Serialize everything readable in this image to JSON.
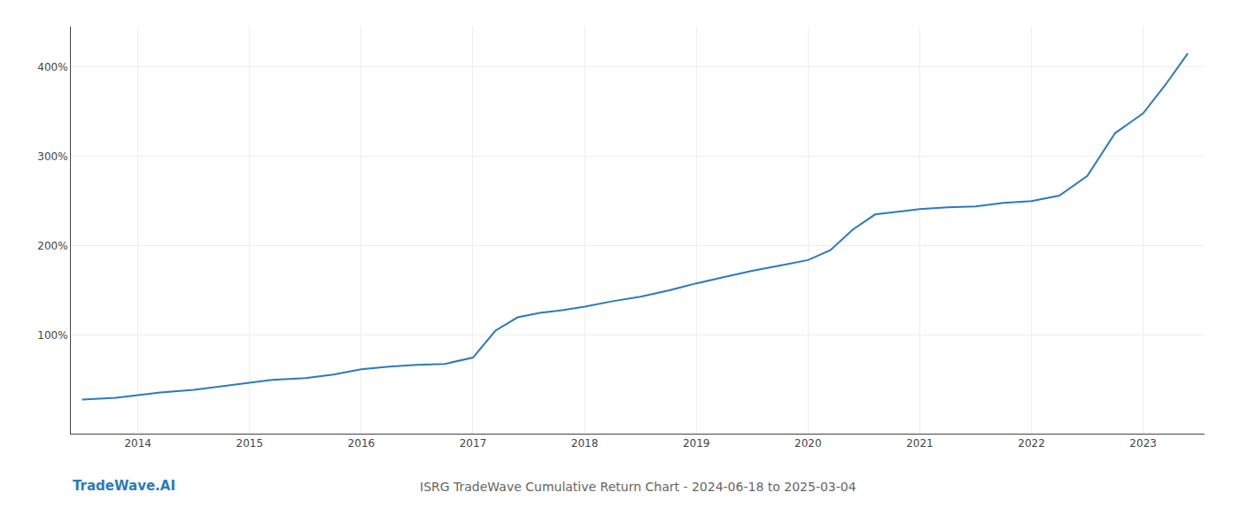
{
  "chart_data": {
    "type": "line",
    "title": "ISRG TradeWave Cumulative Return Chart - 2024-06-18 to 2025-03-04",
    "annotations": [
      "TradeWave.AI"
    ],
    "color": "#2b7bba",
    "x": [
      2013.5,
      2013.65,
      2013.8,
      2014.0,
      2014.2,
      2014.5,
      2014.75,
      2015.0,
      2015.2,
      2015.5,
      2015.75,
      2016.0,
      2016.25,
      2016.5,
      2016.75,
      2017.0,
      2017.2,
      2017.4,
      2017.6,
      2017.8,
      2018.0,
      2018.25,
      2018.5,
      2018.75,
      2019.0,
      2019.25,
      2019.5,
      2019.75,
      2020.0,
      2020.2,
      2020.4,
      2020.6,
      2020.8,
      2021.0,
      2021.25,
      2021.5,
      2021.75,
      2022.0,
      2022.25,
      2022.5,
      2022.75,
      2023.0,
      2023.2,
      2023.4
    ],
    "values": [
      28,
      29,
      30,
      33,
      36,
      39,
      43,
      47,
      50,
      52,
      56,
      62,
      65,
      67,
      68,
      75,
      105,
      120,
      125,
      128,
      132,
      138,
      143,
      150,
      158,
      165,
      172,
      178,
      184,
      195,
      218,
      235,
      238,
      241,
      243,
      244,
      248,
      250,
      256,
      278,
      326,
      348,
      380,
      415
    ],
    "xlim": [
      2013.4,
      2023.55
    ],
    "xticks": [
      2014,
      2015,
      2016,
      2017,
      2018,
      2019,
      2020,
      2021,
      2022,
      2023
    ],
    "ylim": [
      -10,
      445
    ],
    "yticks": [
      {
        "value": 100,
        "label": "100%"
      },
      {
        "value": 200,
        "label": "200%"
      },
      {
        "value": 300,
        "label": "300%"
      },
      {
        "value": 400,
        "label": "400%"
      }
    ],
    "grid": true
  }
}
